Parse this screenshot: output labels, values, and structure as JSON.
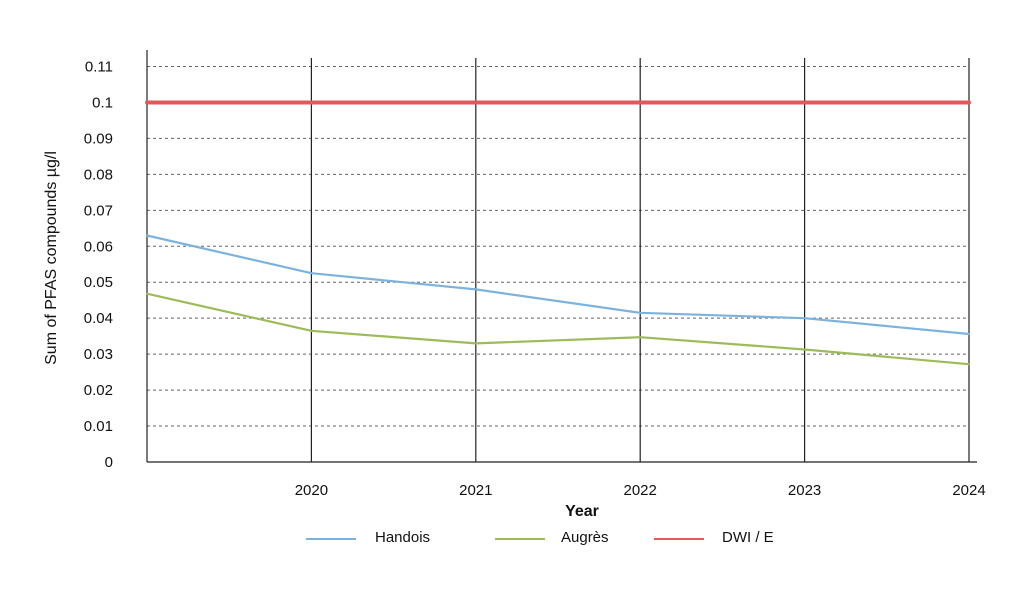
{
  "chart_data": {
    "type": "line",
    "title": "",
    "xlabel": "Year",
    "ylabel": "Sum of PFAS compounds µg/l",
    "ylim": [
      0,
      0.11
    ],
    "y_ticks": [
      "0",
      "0.01",
      "0.02",
      "0.03",
      "0.04",
      "0.05",
      "0.06",
      "0.07",
      "0.08",
      "0.09",
      "0.1",
      "0.11"
    ],
    "x_range": [
      2019,
      2024
    ],
    "x_ticks": [
      "2020",
      "2021",
      "2022",
      "2023",
      "2024"
    ],
    "grid": "horizontal dashed, vertical solid at year ticks",
    "legend_position": "bottom",
    "series": [
      {
        "name": "Handois",
        "color": "#7db2dc",
        "x": [
          2019,
          2020,
          2021,
          2022,
          2023,
          2024
        ],
        "values": [
          0.063,
          0.0525,
          0.048,
          0.0415,
          0.04,
          0.0356
        ]
      },
      {
        "name": "Augrès",
        "color": "#9dbb5a",
        "x": [
          2019,
          2020,
          2021,
          2022,
          2023,
          2024
        ],
        "values": [
          0.0468,
          0.0365,
          0.033,
          0.0347,
          0.0313,
          0.0272
        ]
      },
      {
        "name": "DWI / E",
        "color": "#e05a5a",
        "x": [
          2019,
          2024
        ],
        "values": [
          0.1,
          0.1
        ]
      }
    ]
  }
}
